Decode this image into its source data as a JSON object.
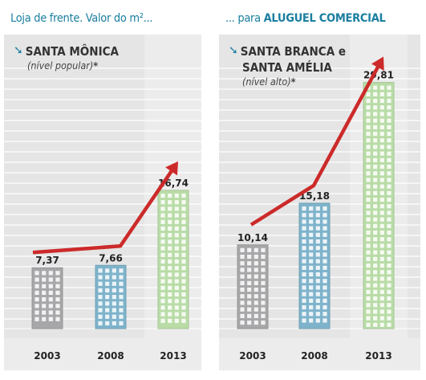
{
  "headings": {
    "left_prefix": "Loja de frente. Valor do m²...",
    "right_prefix": "... para ",
    "right_bold": "ALUGUEL COMERCIAL"
  },
  "colors": {
    "accent": "#1b7fa0",
    "trend_arrow": "#cc2a2a",
    "bar_2003": "#a7a7a9",
    "bar_2008": "#7eb3cb",
    "bar_2013": "#b9dca7",
    "panel_bg": "#e5e5e5"
  },
  "icons": {
    "title_marker": "down-right-arrow-icon",
    "trend": "trend-arrow-icon"
  },
  "chart_data": [
    {
      "type": "bar",
      "title_lines": [
        "SANTA MÔNICA"
      ],
      "subtitle": "(nível popular)",
      "subtitle_mark": "*",
      "categories": [
        "2003",
        "2008",
        "2013"
      ],
      "values": [
        7.37,
        7.66,
        16.74
      ],
      "value_labels": [
        "7,37",
        "7,66",
        "16,74"
      ],
      "ylim": [
        0,
        30
      ],
      "grid": true,
      "trend_arrow": true
    },
    {
      "type": "bar",
      "title_lines": [
        "SANTA BRANCA e",
        "SANTA AMÉLIA"
      ],
      "subtitle": "(nível alto)",
      "subtitle_mark": "*",
      "categories": [
        "2003",
        "2008",
        "2013"
      ],
      "values": [
        10.14,
        15.18,
        29.81
      ],
      "value_labels": [
        "10,14",
        "15,18",
        "29,81"
      ],
      "ylim": [
        0,
        30
      ],
      "grid": true,
      "trend_arrow": true
    }
  ]
}
